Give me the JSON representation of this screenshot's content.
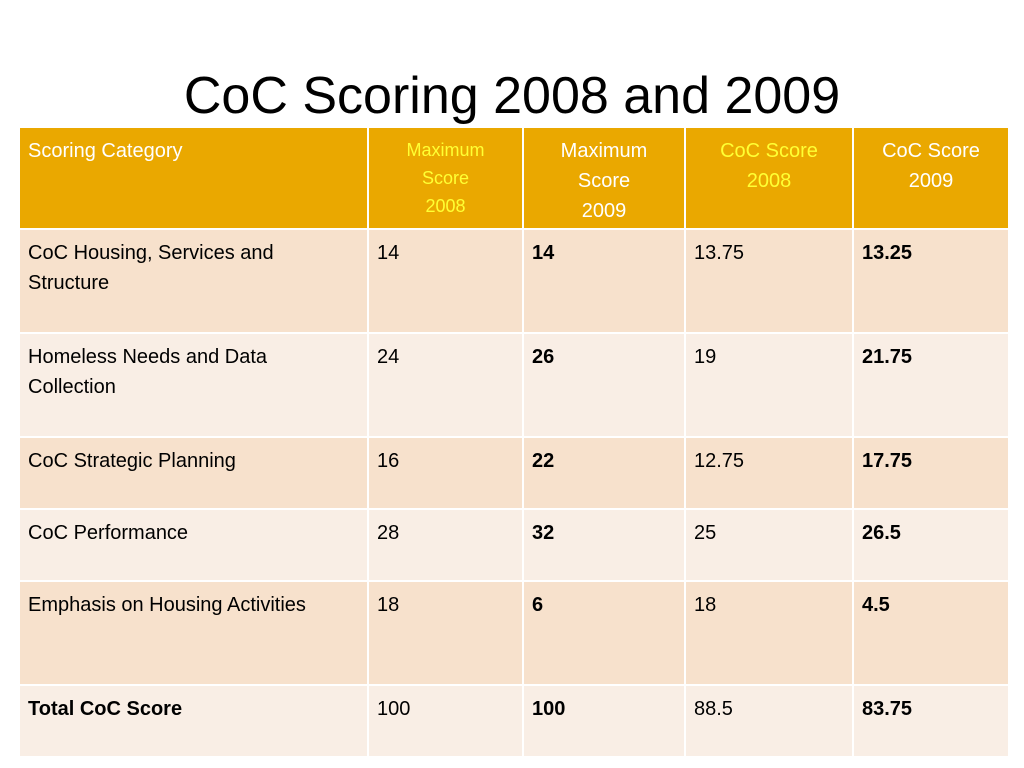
{
  "slide": {
    "title": "CoC Scoring 2008 and 2009"
  },
  "table": {
    "headers": {
      "category": "Scoring Category",
      "max_2008_line1": "Maximum",
      "max_2008_line2": "Score",
      "max_2008_line3": "2008",
      "max_2009_line1": "Maximum",
      "max_2009_line2": "Score",
      "max_2009_line3": "2009",
      "score_2008_line1": "CoC Score",
      "score_2008_line2": "2008",
      "score_2009_line1": "CoC Score",
      "score_2009_line2": "2009"
    },
    "rows": [
      {
        "category_line1": "CoC Housing, Services and",
        "category_line2": "Structure",
        "max_2008": "14",
        "max_2009": "14",
        "score_2008": "13.75",
        "score_2009": "13.25"
      },
      {
        "category_line1": "Homeless Needs and Data",
        "category_line2": "Collection",
        "max_2008": "24",
        "max_2009": "26",
        "score_2008": "19",
        "score_2009": "21.75"
      },
      {
        "category_line1": "CoC Strategic Planning",
        "category_line2": "",
        "max_2008": "16",
        "max_2009": "22",
        "score_2008": "12.75",
        "score_2009": "17.75"
      },
      {
        "category_line1": "CoC Performance",
        "category_line2": "",
        "max_2008": "28",
        "max_2009": "32",
        "score_2008": "25",
        "score_2009": "26.5"
      },
      {
        "category_line1": "Emphasis on Housing Activities",
        "category_line2": "",
        "max_2008": "18",
        "max_2009": "6",
        "score_2008": "18",
        "score_2009": "4.5"
      },
      {
        "category_line1": "Total CoC Score",
        "category_line2": "",
        "max_2008": "100",
        "max_2009": "100",
        "score_2008": "88.5",
        "score_2009": "83.75"
      }
    ],
    "colors": {
      "header_bg": "#eaa800",
      "header_text": "#ffffff",
      "header_highlight_text": "#ffff33",
      "row_odd_bg": "#f7e1cc",
      "row_even_bg": "#f9eee5"
    }
  }
}
